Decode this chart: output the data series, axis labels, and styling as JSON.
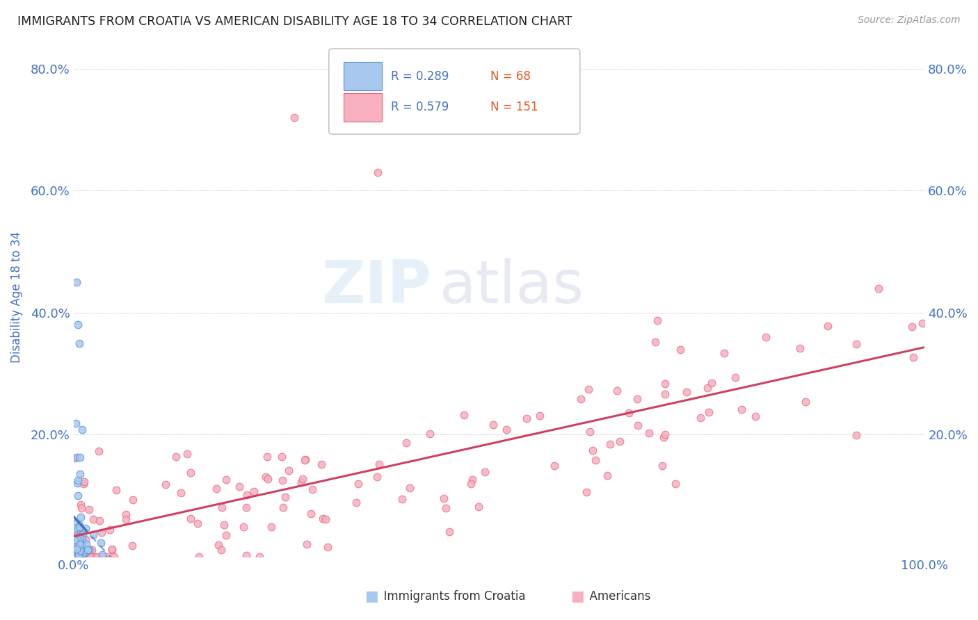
{
  "title": "IMMIGRANTS FROM CROATIA VS AMERICAN DISABILITY AGE 18 TO 34 CORRELATION CHART",
  "source": "Source: ZipAtlas.com",
  "ylabel": "Disability Age 18 to 34",
  "xlim": [
    0.0,
    1.0
  ],
  "ylim": [
    0.0,
    0.85
  ],
  "watermark_zip": "ZIP",
  "watermark_atlas": "atlas",
  "legend_label1": "Immigrants from Croatia",
  "legend_label2": "Americans",
  "legend_R1": "R = 0.289",
  "legend_N1": "N = 68",
  "legend_R2": "R = 0.579",
  "legend_N2": "N = 151",
  "color_croatia_fill": "#a8c8f0",
  "color_croatia_edge": "#5090d0",
  "color_americans_fill": "#f8b0c0",
  "color_americans_edge": "#e06880",
  "color_regression_croatia": "#4472c4",
  "color_regression_americans": "#d04060",
  "color_axis_labels": "#4472c4",
  "color_N": "#e05820",
  "color_title": "#222222",
  "color_source": "#999999",
  "color_watermark_zip": "#c8dff0",
  "color_watermark_atlas": "#c0c8e0"
}
